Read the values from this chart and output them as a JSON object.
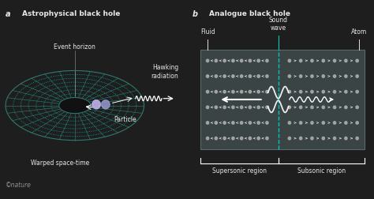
{
  "bg_color": "#1e1e1e",
  "panel_a_title": "Astrophysical black hole",
  "panel_b_title": "Analogue black hole",
  "label_a": "a",
  "label_b": "b",
  "text_color": "#e8e8e8",
  "teal_color": "#00c8b8",
  "grid_color": "#2e7a6e",
  "dot_color": "#00c8b8",
  "particle_color_1": "#c0b0e8",
  "particle_color_2": "#9898d0",
  "nature_text": "©nature",
  "panel_a_labels": {
    "event_horizon": "Event horizon",
    "warped_spacetime": "Warped space-time",
    "particle": "Particle",
    "hawking": "Hawking\nradiation"
  },
  "panel_b_labels": {
    "fluid": "Fluid",
    "sound_wave": "Sound\nwave",
    "atom": "Atom",
    "supersonic": "Supersonic region",
    "subsonic": "Subsonic region"
  },
  "atom_color": "#b8b8b8",
  "box_bg": "#3a4444",
  "box_border": "#5a6868"
}
